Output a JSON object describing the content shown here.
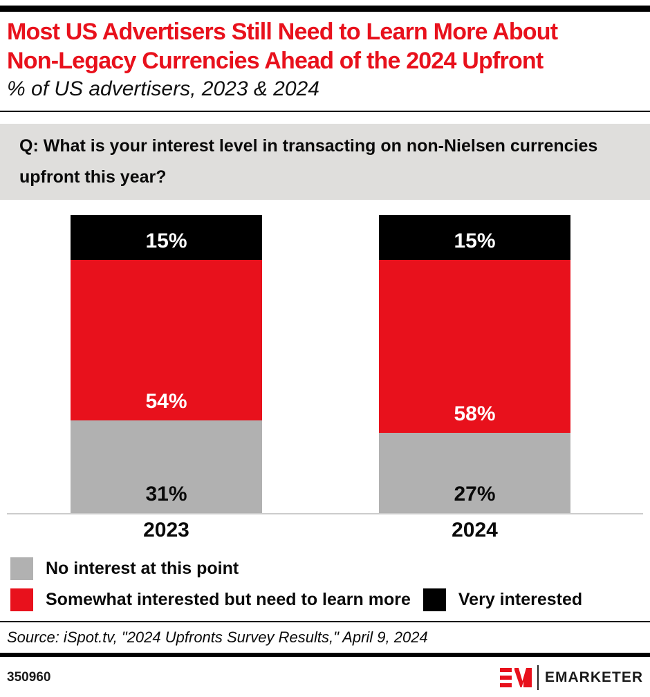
{
  "header": {
    "title_line1": "Most US Advertisers Still Need to Learn More About",
    "title_line2": "Non-Legacy Currencies Ahead of the 2024 Upfront",
    "subtitle": "% of US advertisers, 2023 & 2024"
  },
  "question": "Q: What is your interest level in transacting on non-Nielsen currencies upfront this year?",
  "chart_data": {
    "type": "bar",
    "stacked": true,
    "categories": [
      "2023",
      "2024"
    ],
    "series": [
      {
        "name": "No interest at this point",
        "color": "#b1b1b1",
        "label_color": "#0a0a0a",
        "values": [
          31,
          27
        ]
      },
      {
        "name": "Somewhat interested but need to learn more",
        "color": "#e8111c",
        "label_color": "#ffffff",
        "values": [
          54,
          58
        ]
      },
      {
        "name": "Very interested",
        "color": "#000000",
        "label_color": "#ffffff",
        "values": [
          15,
          15
        ]
      }
    ],
    "value_suffix": "%",
    "ylim": [
      0,
      100
    ],
    "grid": false,
    "legend_position": "bottom",
    "title": "Most US Advertisers Still Need to Learn More About Non-Legacy Currencies Ahead of the 2024 Upfront",
    "xlabel": "",
    "ylabel": ""
  },
  "source": "Source: iSpot.tv, \"2024 Upfronts Survey Results,\" April 9, 2024",
  "footer": {
    "chart_id": "350960",
    "logo_monogram": "EM",
    "brand": "EMARKETER"
  },
  "colors": {
    "brand_red": "#e8111c",
    "bar_gray": "#b1b1b1",
    "bar_black": "#000000",
    "question_bg": "#dfdedc"
  }
}
